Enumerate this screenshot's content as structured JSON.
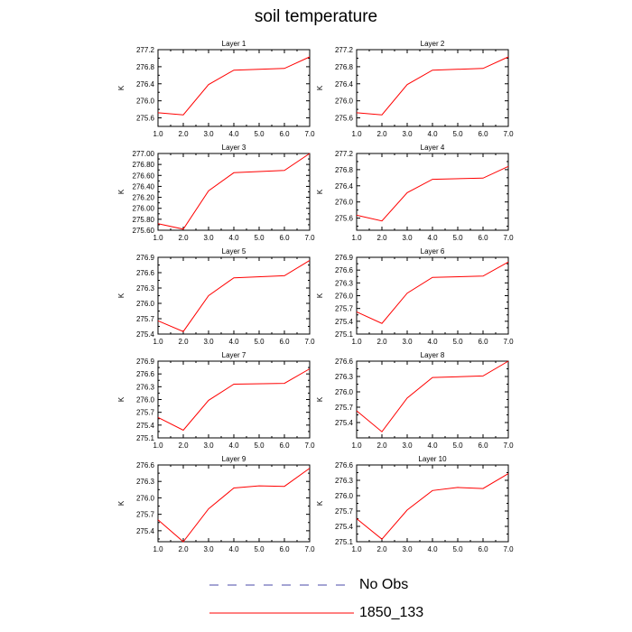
{
  "figure": {
    "title": "soil temperature",
    "legend": [
      {
        "label": "No Obs",
        "style": "dashed",
        "color": "#4a4aa8"
      },
      {
        "label": "1850_133",
        "style": "solid",
        "color": "#ff0000"
      }
    ]
  },
  "chart_data": [
    {
      "type": "line",
      "title": "Layer 1",
      "ylabel": "K",
      "x": [
        1,
        2,
        3,
        4,
        6,
        7
      ],
      "xlim": [
        1.0,
        7.0
      ],
      "xticks": [
        "1.0",
        "2.0",
        "3.0",
        "4.0",
        "5.0",
        "6.0",
        "7.0"
      ],
      "ylim": [
        275.4,
        277.2
      ],
      "yticks": [
        "275.6",
        "276.0",
        "276.4",
        "276.8",
        "277.2"
      ],
      "ytick_values": [
        275.6,
        276.0,
        276.4,
        276.8,
        277.2
      ],
      "series": [
        {
          "name": "1850_133",
          "color": "#ff0000",
          "values": [
            275.72,
            275.67,
            276.38,
            276.72,
            276.76,
            277.03
          ]
        }
      ]
    },
    {
      "type": "line",
      "title": "Layer 2",
      "ylabel": "K",
      "x": [
        1,
        2,
        3,
        4,
        6,
        7
      ],
      "xlim": [
        1.0,
        7.0
      ],
      "xticks": [
        "1.0",
        "2.0",
        "3.0",
        "4.0",
        "5.0",
        "6.0",
        "7.0"
      ],
      "ylim": [
        275.4,
        277.2
      ],
      "yticks": [
        "275.6",
        "276.0",
        "276.4",
        "276.8",
        "277.2"
      ],
      "ytick_values": [
        275.6,
        276.0,
        276.4,
        276.8,
        277.2
      ],
      "series": [
        {
          "name": "1850_133",
          "color": "#ff0000",
          "values": [
            275.72,
            275.67,
            276.38,
            276.72,
            276.76,
            277.03
          ]
        }
      ]
    },
    {
      "type": "line",
      "title": "Layer 3",
      "ylabel": "K",
      "x": [
        1,
        2,
        3,
        4,
        6,
        7
      ],
      "xlim": [
        1.0,
        7.0
      ],
      "xticks": [
        "1.0",
        "2.0",
        "3.0",
        "4.0",
        "5.0",
        "6.0",
        "7.0"
      ],
      "ylim": [
        275.6,
        277.0
      ],
      "yticks": [
        "275.60",
        "275.80",
        "276.00",
        "276.20",
        "276.40",
        "276.60",
        "276.80",
        "277.00"
      ],
      "ytick_values": [
        275.6,
        275.8,
        276.0,
        276.2,
        276.4,
        276.6,
        276.8,
        277.0
      ],
      "series": [
        {
          "name": "1850_133",
          "color": "#ff0000",
          "values": [
            275.72,
            275.62,
            276.32,
            276.65,
            276.69,
            277.0
          ]
        }
      ]
    },
    {
      "type": "line",
      "title": "Layer 4",
      "ylabel": "K",
      "x": [
        1,
        2,
        3,
        4,
        6,
        7
      ],
      "xlim": [
        1.0,
        7.0
      ],
      "xticks": [
        "1.0",
        "2.0",
        "3.0",
        "4.0",
        "5.0",
        "6.0",
        "7.0"
      ],
      "ylim": [
        275.3,
        277.2
      ],
      "yticks": [
        "275.6",
        "276.0",
        "276.4",
        "276.8",
        "277.2"
      ],
      "ytick_values": [
        275.6,
        276.0,
        276.4,
        276.8,
        277.2
      ],
      "series": [
        {
          "name": "1850_133",
          "color": "#ff0000",
          "values": [
            275.67,
            275.53,
            276.23,
            276.56,
            276.59,
            276.88
          ]
        }
      ]
    },
    {
      "type": "line",
      "title": "Layer 5",
      "ylabel": "K",
      "x": [
        1,
        2,
        3,
        4,
        6,
        7
      ],
      "xlim": [
        1.0,
        7.0
      ],
      "xticks": [
        "1.0",
        "2.0",
        "3.0",
        "4.0",
        "5.0",
        "6.0",
        "7.0"
      ],
      "ylim": [
        275.4,
        276.9
      ],
      "yticks": [
        "275.4",
        "275.7",
        "276.0",
        "276.3",
        "276.6",
        "276.9"
      ],
      "ytick_values": [
        275.4,
        275.7,
        276.0,
        276.3,
        276.6,
        276.9
      ],
      "series": [
        {
          "name": "1850_133",
          "color": "#ff0000",
          "values": [
            275.66,
            275.45,
            276.15,
            276.5,
            276.54,
            276.84
          ]
        }
      ]
    },
    {
      "type": "line",
      "title": "Layer 6",
      "ylabel": "K",
      "x": [
        1,
        2,
        3,
        4,
        6,
        7
      ],
      "xlim": [
        1.0,
        7.0
      ],
      "xticks": [
        "1.0",
        "2.0",
        "3.0",
        "4.0",
        "5.0",
        "6.0",
        "7.0"
      ],
      "ylim": [
        275.1,
        276.9
      ],
      "yticks": [
        "275.1",
        "275.4",
        "275.7",
        "276.0",
        "276.3",
        "276.6",
        "276.9"
      ],
      "ytick_values": [
        275.1,
        275.4,
        275.7,
        276.0,
        276.3,
        276.6,
        276.9
      ],
      "series": [
        {
          "name": "1850_133",
          "color": "#ff0000",
          "values": [
            275.62,
            275.35,
            276.06,
            276.43,
            276.46,
            276.79
          ]
        }
      ]
    },
    {
      "type": "line",
      "title": "Layer 7",
      "ylabel": "K",
      "x": [
        1,
        2,
        3,
        4,
        6,
        7
      ],
      "xlim": [
        1.0,
        7.0
      ],
      "xticks": [
        "1.0",
        "2.0",
        "3.0",
        "4.0",
        "5.0",
        "6.0",
        "7.0"
      ],
      "ylim": [
        275.1,
        276.9
      ],
      "yticks": [
        "275.1",
        "275.4",
        "275.7",
        "276.0",
        "276.3",
        "276.6",
        "276.9"
      ],
      "ytick_values": [
        275.1,
        275.4,
        275.7,
        276.0,
        276.3,
        276.6,
        276.9
      ],
      "series": [
        {
          "name": "1850_133",
          "color": "#ff0000",
          "values": [
            275.58,
            275.28,
            275.98,
            276.36,
            276.38,
            276.72
          ]
        }
      ]
    },
    {
      "type": "line",
      "title": "Layer 8",
      "ylabel": "K",
      "x": [
        1,
        2,
        3,
        4,
        6,
        7
      ],
      "xlim": [
        1.0,
        7.0
      ],
      "xticks": [
        "1.0",
        "2.0",
        "3.0",
        "4.0",
        "5.0",
        "6.0",
        "7.0"
      ],
      "ylim": [
        275.1,
        276.6
      ],
      "yticks": [
        "275.4",
        "275.7",
        "276.0",
        "276.3",
        "276.6"
      ],
      "ytick_values": [
        275.4,
        275.7,
        276.0,
        276.3,
        276.6
      ],
      "series": [
        {
          "name": "1850_133",
          "color": "#ff0000",
          "values": [
            275.63,
            275.22,
            275.88,
            276.28,
            276.31,
            276.6
          ]
        }
      ]
    },
    {
      "type": "line",
      "title": "Layer 9",
      "ylabel": "K",
      "x": [
        1,
        2,
        3,
        4,
        5,
        6,
        7
      ],
      "xlim": [
        1.0,
        7.0
      ],
      "xticks": [
        "1.0",
        "2.0",
        "3.0",
        "4.0",
        "5.0",
        "6.0",
        "7.0"
      ],
      "ylim": [
        275.2,
        276.6
      ],
      "yticks": [
        "275.4",
        "275.7",
        "276.0",
        "276.3",
        "276.6"
      ],
      "ytick_values": [
        275.4,
        275.7,
        276.0,
        276.3,
        276.6
      ],
      "series": [
        {
          "name": "1850_133",
          "color": "#ff0000",
          "values": [
            275.6,
            275.2,
            275.8,
            276.18,
            276.22,
            276.21,
            276.54
          ]
        }
      ]
    },
    {
      "type": "line",
      "title": "Layer 10",
      "ylabel": "K",
      "x": [
        1,
        2,
        3,
        4,
        5,
        6,
        7
      ],
      "xlim": [
        1.0,
        7.0
      ],
      "xticks": [
        "1.0",
        "2.0",
        "3.0",
        "4.0",
        "5.0",
        "6.0",
        "7.0"
      ],
      "ylim": [
        275.1,
        276.6
      ],
      "yticks": [
        "275.1",
        "275.4",
        "275.7",
        "276.0",
        "276.3",
        "276.6"
      ],
      "ytick_values": [
        275.1,
        275.4,
        275.7,
        276.0,
        276.3,
        276.6
      ],
      "series": [
        {
          "name": "1850_133",
          "color": "#ff0000",
          "values": [
            275.55,
            275.15,
            275.72,
            276.1,
            276.16,
            276.14,
            276.43
          ]
        }
      ]
    }
  ]
}
